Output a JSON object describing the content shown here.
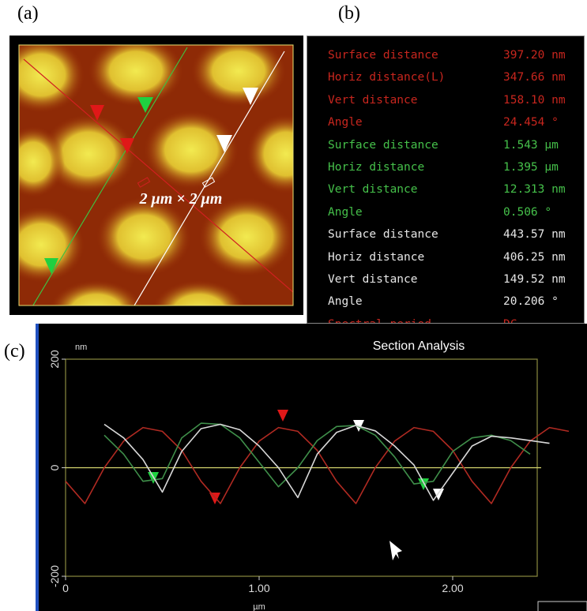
{
  "panel_labels": [
    "(a)",
    "(b)",
    "(c)"
  ],
  "image": {
    "scale_label": "2 μm × 2 μm"
  },
  "table": {
    "groups": [
      {
        "rows": [
          [
            "Surface distance",
            "397.20 nm"
          ],
          [
            "Horiz distance(L)",
            "347.66 nm"
          ],
          [
            "Vert distance",
            "158.10 nm"
          ],
          [
            "Angle",
            "24.454 °"
          ]
        ]
      },
      {
        "rows": [
          [
            "Surface distance",
            "1.543 µm"
          ],
          [
            "Horiz distance",
            "1.395 µm"
          ],
          [
            "Vert distance",
            "12.313 nm"
          ],
          [
            "Angle",
            "0.506 °"
          ]
        ]
      },
      {
        "rows": [
          [
            "Surface distance",
            "443.57 nm"
          ],
          [
            "Horiz distance",
            "406.25 nm"
          ],
          [
            "Vert distance",
            "149.52 nm"
          ],
          [
            "Angle",
            "20.206 °"
          ]
        ]
      },
      {
        "rows": [
          [
            "Spectral period",
            "DC"
          ]
        ]
      }
    ]
  },
  "chart_data": {
    "type": "line",
    "title": "Section Analysis",
    "y_unit": "nm",
    "x_unit": "µm",
    "xlim": [
      0,
      2.6
    ],
    "ylim": [
      -200,
      200
    ],
    "xticks": [
      0,
      {
        "value": 1,
        "label": "1.00"
      },
      {
        "value": 2,
        "label": "2.00"
      }
    ],
    "yticks": [
      -200,
      0,
      200
    ],
    "series": [
      {
        "color": "#b02a22",
        "x": [
          0,
          0.1,
          0.2,
          0.3,
          0.4,
          0.5,
          0.6,
          0.7,
          0.8,
          0.9,
          1.0,
          1.1,
          1.2,
          1.3,
          1.4,
          1.5,
          1.6,
          1.7,
          1.8,
          1.9,
          2.0,
          2.1,
          2.2,
          2.3,
          2.4,
          2.5,
          2.6
        ],
        "values": [
          -25,
          -66,
          0,
          49,
          74,
          67,
          32,
          -25,
          -66,
          0,
          49,
          74,
          67,
          32,
          -25,
          -66,
          0,
          49,
          74,
          67,
          32,
          -25,
          -66,
          0,
          49,
          74,
          67
        ]
      },
      {
        "color": "#3f8f4a",
        "x": [
          0.2,
          0.3,
          0.4,
          0.5,
          0.6,
          0.7,
          0.8,
          0.9,
          1.0,
          1.1,
          1.2,
          1.3,
          1.4,
          1.5,
          1.6,
          1.7,
          1.8,
          1.9,
          2.0,
          2.1,
          2.2,
          2.3,
          2.4
        ],
        "values": [
          60,
          25,
          -25,
          -20,
          55,
          82,
          80,
          55,
          10,
          -35,
          0,
          50,
          76,
          78,
          60,
          20,
          -30,
          -25,
          30,
          55,
          60,
          50,
          25
        ]
      },
      {
        "color": "#d8d8d8",
        "x": [
          0.2,
          0.3,
          0.4,
          0.5,
          0.6,
          0.7,
          0.8,
          0.9,
          1.0,
          1.1,
          1.2,
          1.3,
          1.4,
          1.5,
          1.6,
          1.7,
          1.8,
          1.9,
          2.0,
          2.1,
          2.2,
          2.3,
          2.4,
          2.5
        ],
        "values": [
          80,
          55,
          15,
          -45,
          30,
          72,
          80,
          70,
          40,
          0,
          -55,
          25,
          65,
          78,
          68,
          40,
          5,
          -60,
          -10,
          40,
          58,
          55,
          50,
          45
        ]
      }
    ]
  }
}
